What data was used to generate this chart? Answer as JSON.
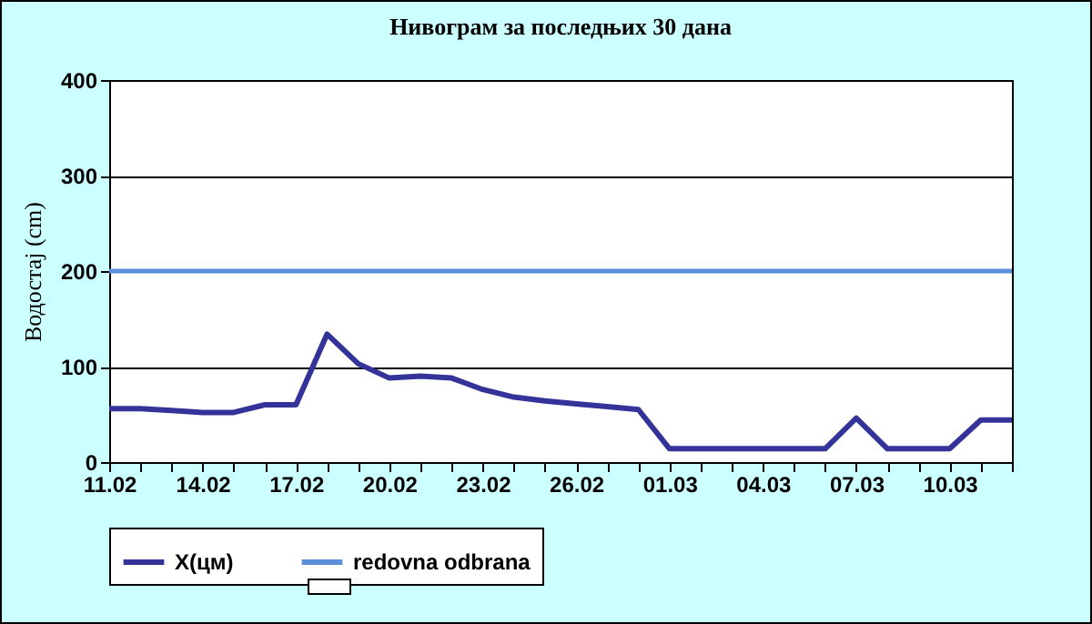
{
  "chart_data": {
    "type": "line",
    "title": "Нивограм за последњих 30 дана",
    "ylabel": "Водостај (cm)",
    "categories": [
      "11.02",
      null,
      null,
      "14.02",
      null,
      null,
      "17.02",
      null,
      null,
      "20.02",
      null,
      null,
      "23.02",
      null,
      null,
      "26.02",
      null,
      null,
      "01.03",
      null,
      null,
      "04.03",
      null,
      null,
      "07.03",
      null,
      null,
      "10.03",
      null,
      null
    ],
    "series": [
      {
        "name": "X(цм)",
        "color": "#333399",
        "values": [
          56,
          56,
          54,
          52,
          52,
          60,
          60,
          134,
          103,
          88,
          90,
          88,
          76,
          68,
          64,
          61,
          58,
          55,
          14,
          14,
          14,
          14,
          14,
          14,
          46,
          14,
          14,
          14,
          44,
          44
        ]
      }
    ],
    "ref_lines": [
      {
        "axis": "y",
        "value": 200,
        "label": "redovna odbrana",
        "color": "#5b8fd9"
      }
    ],
    "ylim": [
      0,
      400
    ],
    "yticks": [
      0,
      100,
      200,
      300,
      400
    ],
    "grid": "y",
    "legend": "bottom",
    "marker": "none",
    "line_style": "solid"
  }
}
